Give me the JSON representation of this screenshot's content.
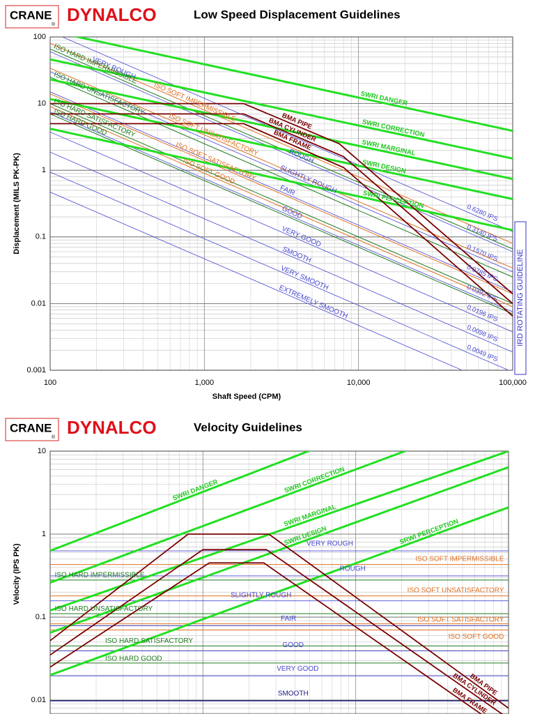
{
  "chart_data": [
    {
      "type": "line",
      "logo_crane": "CRANE",
      "logo_mark": "®",
      "logo_dynalco": "DYNALCO",
      "title": "Low Speed Displacement Guidelines",
      "xlabel": "Shaft Speed (CPM)",
      "ylabel": "Displacement (MILS PK-PK)",
      "annotation": "IRD ROTATING GUIDELINE",
      "log_x": true,
      "log_y": true,
      "grid": true,
      "xlim": [
        100,
        100000
      ],
      "ylim": [
        0.001,
        100
      ],
      "xticks": [
        100,
        {
          "value": 1000,
          "label": "1,000"
        },
        {
          "value": 10000,
          "label": "10,000"
        },
        {
          "value": 100000,
          "label": "100,000"
        }
      ],
      "yticks": [
        0.001,
        0.01,
        0.1,
        1,
        10,
        100
      ],
      "series": [
        {
          "name": "VERY ROUGH",
          "ips_label": "0.6280 IPS",
          "color": "#4646d2",
          "line_width": 0.8,
          "x": [
            100,
            100000
          ],
          "values": [
            120,
            0.12
          ]
        },
        {
          "name": "ROUGH",
          "ips_label": "0.3140 IPS",
          "color": "#4646d2",
          "line_width": 0.8,
          "x": [
            100,
            100000
          ],
          "values": [
            60,
            0.06
          ]
        },
        {
          "name": "SLIGHTLY ROUGH",
          "ips_label": "0.1570 IPS",
          "color": "#4646d2",
          "line_width": 0.8,
          "x": [
            100,
            100000
          ],
          "values": [
            30,
            0.03
          ]
        },
        {
          "name": "FAIR",
          "ips_label": "0.0785 IPS",
          "color": "#4646d2",
          "line_width": 0.8,
          "x": [
            100,
            100000
          ],
          "values": [
            15,
            0.015
          ]
        },
        {
          "name": "GOOD",
          "ips_label": "0.0392 IPS",
          "color": "#4646d2",
          "line_width": 0.8,
          "x": [
            100,
            100000
          ],
          "values": [
            7.5,
            0.0075
          ]
        },
        {
          "name": "VERY GOOD",
          "ips_label": "0.0196 IPS",
          "color": "#4646d2",
          "line_width": 0.8,
          "x": [
            100,
            100000
          ],
          "values": [
            3.75,
            0.00375
          ]
        },
        {
          "name": "SMOOTH",
          "ips_label": "0.0098 IPS",
          "color": "#4646d2",
          "line_width": 0.8,
          "x": [
            100,
            100000
          ],
          "values": [
            1.87,
            0.00187
          ]
        },
        {
          "name": "VERY SMOOTH",
          "ips_label": "0.0049 IPS",
          "color": "#4646d2",
          "line_width": 0.8,
          "x": [
            100,
            100000
          ],
          "values": [
            0.94,
            0.00094
          ]
        },
        {
          "name": "EXTREMELY SMOOTH",
          "color": "#4646d2",
          "line_width": 0.8,
          "x": [
            100,
            100000
          ],
          "values": [
            0.47,
            0.00047
          ]
        },
        {
          "name": "ISO HARD IMPERMISSIBLE",
          "color": "#1e7a1e",
          "line_width": 1,
          "x": [
            100,
            100000
          ],
          "values": [
            66,
            0.066
          ]
        },
        {
          "name": "ISO HARD UNSATISFACTORY",
          "color": "#1e7a1e",
          "line_width": 1,
          "x": [
            100,
            100000
          ],
          "values": [
            25,
            0.025
          ]
        },
        {
          "name": "ISO HARD SATISFACTORY",
          "color": "#1e7a1e",
          "line_width": 1,
          "x": [
            100,
            100000
          ],
          "values": [
            10,
            0.01
          ]
        },
        {
          "name": "ISO HARD GOOD",
          "color": "#1e7a1e",
          "line_width": 1,
          "x": [
            100,
            100000
          ],
          "values": [
            7,
            0.007
          ]
        },
        {
          "name": "ISO SOFT IMPERMISSIBLE",
          "color": "#e07020",
          "line_width": 1,
          "x": [
            100,
            100000
          ],
          "values": [
            80,
            0.08
          ]
        },
        {
          "name": "ISO SOFT UNSATISFACTORY",
          "color": "#e07020",
          "line_width": 1,
          "x": [
            100,
            100000
          ],
          "values": [
            34,
            0.034
          ]
        },
        {
          "name": "ISO SOFT SATISFACTORY",
          "color": "#e07020",
          "line_width": 1,
          "x": [
            100,
            100000
          ],
          "values": [
            14,
            0.014
          ]
        },
        {
          "name": "ISO SOFT GOOD",
          "color": "#e07020",
          "line_width": 1,
          "x": [
            100,
            100000
          ],
          "values": [
            9,
            0.009
          ]
        },
        {
          "name": "SWRI DANGER",
          "color": "#22e022",
          "line_width": 3,
          "x": [
            100,
            100000
          ],
          "values": [
            123,
            3.9
          ]
        },
        {
          "name": "SWRI CORRECTION",
          "color": "#22e022",
          "line_width": 3,
          "x": [
            100,
            100000
          ],
          "values": [
            46,
            1.5
          ]
        },
        {
          "name": "SWRI MARGINAL",
          "color": "#22e022",
          "line_width": 3,
          "x": [
            100,
            100000
          ],
          "values": [
            23,
            0.74
          ]
        },
        {
          "name": "SWRI DESIGN",
          "color": "#22e022",
          "line_width": 3,
          "x": [
            100,
            100000
          ],
          "values": [
            11.7,
            0.37
          ]
        },
        {
          "name": "SWRI PERCEPTION",
          "color": "#22e022",
          "line_width": 3,
          "x": [
            100,
            100000
          ],
          "values": [
            4.2,
            0.126
          ]
        },
        {
          "name": "BMA PIPE",
          "color": "#7a0000",
          "line_width": 1.8,
          "x": [
            100,
            1800,
            7500,
            100000
          ],
          "values": [
            10,
            10,
            2.5,
            0.014
          ]
        },
        {
          "name": "BMA CYLINDER",
          "color": "#7a0000",
          "line_width": 1.8,
          "x": [
            100,
            1800,
            8000,
            100000
          ],
          "values": [
            7,
            7,
            1.6,
            0.01
          ]
        },
        {
          "name": "BMA FRAME",
          "color": "#7a0000",
          "line_width": 1.8,
          "x": [
            100,
            1800,
            8000,
            100000
          ],
          "values": [
            5,
            5,
            1.1,
            0.0065
          ]
        }
      ]
    },
    {
      "type": "line",
      "logo_crane": "CRANE",
      "logo_mark": "®",
      "logo_dynalco": "DYNALCO",
      "title": "Velocity Guidelines",
      "ylabel": "Velocity (IPS PK)",
      "log_x": true,
      "log_y": true,
      "grid": true,
      "x_tick_labels": false,
      "xlim": [
        100,
        100000
      ],
      "ylim": [
        0.0068,
        10
      ],
      "xticks": [
        100,
        1000,
        10000,
        100000
      ],
      "yticks": [
        0.01,
        0.1,
        1,
        10
      ],
      "series": [
        {
          "name": "VERY ROUGH",
          "color": "#4646d2",
          "line_width": 0.9,
          "x": [
            100,
            100000
          ],
          "values": [
            0.628,
            0.628
          ]
        },
        {
          "name": "ROUGH",
          "color": "#4646d2",
          "line_width": 0.9,
          "x": [
            100,
            100000
          ],
          "values": [
            0.314,
            0.314
          ]
        },
        {
          "name": "SLIGHTLY ROUGH",
          "color": "#4646d2",
          "line_width": 0.9,
          "x": [
            100,
            100000
          ],
          "values": [
            0.157,
            0.157
          ]
        },
        {
          "name": "FAIR",
          "color": "#4646d2",
          "line_width": 0.9,
          "x": [
            100,
            100000
          ],
          "values": [
            0.0785,
            0.0785
          ]
        },
        {
          "name": "GOOD",
          "color": "#4646d2",
          "line_width": 0.9,
          "x": [
            100,
            100000
          ],
          "values": [
            0.0392,
            0.0392
          ]
        },
        {
          "name": "VERY GOOD",
          "color": "#4646d2",
          "line_width": 0.9,
          "x": [
            100,
            100000
          ],
          "values": [
            0.0196,
            0.0196
          ]
        },
        {
          "name": "SMOOTH",
          "color": "#1a1a80",
          "line_width": 1.2,
          "x": [
            100,
            100000
          ],
          "values": [
            0.0098,
            0.0098
          ]
        },
        {
          "name": "ISO HARD IMPERMISSIBLE",
          "color": "#1e7a1e",
          "line_width": 1,
          "x": [
            100,
            100000
          ],
          "values": [
            0.28,
            0.28
          ]
        },
        {
          "name": "ISO HARD UNSATISFACTORY",
          "color": "#1e7a1e",
          "line_width": 1,
          "x": [
            100,
            100000
          ],
          "values": [
            0.11,
            0.11
          ]
        },
        {
          "name": "ISO HARD SATISFACTORY",
          "color": "#1e7a1e",
          "line_width": 1,
          "x": [
            100,
            100000
          ],
          "values": [
            0.045,
            0.045
          ]
        },
        {
          "name": "ISO HARD GOOD",
          "color": "#1e7a1e",
          "line_width": 1,
          "x": [
            100,
            100000
          ],
          "values": [
            0.028,
            0.028
          ]
        },
        {
          "name": "ISO SOFT IMPERMISSIBLE",
          "color": "#e07020",
          "line_width": 1,
          "x": [
            100,
            100000
          ],
          "values": [
            0.43,
            0.43
          ]
        },
        {
          "name": "ISO SOFT UNSATISFACTORY",
          "color": "#e07020",
          "line_width": 1,
          "x": [
            100,
            100000
          ],
          "values": [
            0.18,
            0.18
          ]
        },
        {
          "name": "ISO SOFT SATISFACTORY",
          "color": "#e07020",
          "line_width": 1,
          "x": [
            100,
            100000
          ],
          "values": [
            0.083,
            0.083
          ]
        },
        {
          "name": "ISO SOFT GOOD",
          "color": "#e07020",
          "line_width": 1,
          "x": [
            100,
            100000
          ],
          "values": [
            0.07,
            0.07
          ]
        },
        {
          "name": "SWRI DANGER",
          "color": "#22e022",
          "line_width": 3,
          "x": [
            100,
            100000
          ],
          "values": [
            0.63,
            85
          ]
        },
        {
          "name": "SWRI CORRECTION",
          "color": "#22e022",
          "line_width": 3,
          "x": [
            100,
            100000
          ],
          "values": [
            0.26,
            29
          ]
        },
        {
          "name": "SWRI MARGINAL",
          "color": "#22e022",
          "line_width": 3,
          "x": [
            100,
            100000
          ],
          "values": [
            0.12,
            10
          ]
        },
        {
          "name": "SWRI DESIGN",
          "color": "#22e022",
          "line_width": 3,
          "x": [
            100,
            100000
          ],
          "values": [
            0.065,
            6.4
          ]
        },
        {
          "name": "SRWI PERCEPTION",
          "color": "#22e022",
          "line_width": 3,
          "x": [
            100,
            100000
          ],
          "values": [
            0.02,
            2.1
          ]
        },
        {
          "name": "BMA PIPE",
          "color": "#7a0000",
          "line_width": 1.8,
          "x": [
            100,
            800,
            2700,
            100000
          ],
          "values": [
            0.052,
            1,
            1,
            0.008
          ]
        },
        {
          "name": "BMA CYLINDER",
          "color": "#7a0000",
          "line_width": 1.8,
          "x": [
            100,
            1000,
            2600,
            100000
          ],
          "values": [
            0.035,
            0.65,
            0.65,
            0.006
          ]
        },
        {
          "name": "BMA FRAME",
          "color": "#7a0000",
          "line_width": 1.8,
          "x": [
            100,
            1100,
            2500,
            100000
          ],
          "values": [
            0.025,
            0.45,
            0.45,
            0.004
          ]
        }
      ]
    }
  ]
}
